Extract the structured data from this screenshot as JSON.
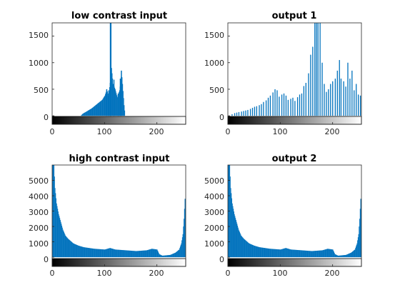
{
  "chart_data": [
    {
      "type": "bar",
      "title": "low contrast input",
      "xlim": [
        0,
        255
      ],
      "ylim": [
        -160,
        1750
      ],
      "xticks": [
        "0",
        "100",
        "200"
      ],
      "yticks": [
        "0",
        "500",
        "1000",
        "1500"
      ],
      "colorbar": "grayscale 0-255",
      "bar_color": "#0072bd",
      "profile": [
        [
          0,
          0
        ],
        [
          54,
          0
        ],
        [
          58,
          40
        ],
        [
          65,
          80
        ],
        [
          75,
          140
        ],
        [
          85,
          220
        ],
        [
          95,
          300
        ],
        [
          100,
          380
        ],
        [
          104,
          500
        ],
        [
          107,
          380
        ],
        [
          110,
          620
        ],
        [
          111,
          1750
        ],
        [
          112,
          1750
        ],
        [
          113,
          900
        ],
        [
          116,
          600
        ],
        [
          120,
          500
        ],
        [
          124,
          350
        ],
        [
          128,
          480
        ],
        [
          130,
          620
        ],
        [
          132,
          850
        ],
        [
          134,
          600
        ],
        [
          137,
          200
        ],
        [
          139,
          0
        ],
        [
          255,
          0
        ]
      ],
      "spikes": [
        [
          104,
          500
        ],
        [
          108,
          480
        ],
        [
          111,
          1750
        ],
        [
          112,
          1750
        ],
        [
          118,
          680
        ],
        [
          126,
          420
        ],
        [
          130,
          700
        ],
        [
          132,
          850
        ]
      ]
    },
    {
      "type": "bar",
      "title": "output 1",
      "xlim": [
        0,
        255
      ],
      "ylim": [
        -160,
        1750
      ],
      "xticks": [
        "0",
        "100",
        "200"
      ],
      "yticks": [
        "0",
        "500",
        "1000",
        "1500"
      ],
      "colorbar": "grayscale 0-255",
      "bar_color": "#0072bd",
      "profile": [
        [
          0,
          0
        ],
        [
          255,
          0
        ]
      ],
      "spikes": [
        [
          8,
          30
        ],
        [
          13,
          50
        ],
        [
          17,
          60
        ],
        [
          21,
          70
        ],
        [
          26,
          80
        ],
        [
          30,
          90
        ],
        [
          34,
          100
        ],
        [
          38,
          110
        ],
        [
          43,
          130
        ],
        [
          47,
          150
        ],
        [
          51,
          170
        ],
        [
          55,
          180
        ],
        [
          60,
          200
        ],
        [
          64,
          220
        ],
        [
          68,
          260
        ],
        [
          73,
          290
        ],
        [
          77,
          340
        ],
        [
          81,
          380
        ],
        [
          86,
          440
        ],
        [
          90,
          500
        ],
        [
          94,
          480
        ],
        [
          98,
          360
        ],
        [
          103,
          400
        ],
        [
          107,
          420
        ],
        [
          111,
          380
        ],
        [
          115,
          300
        ],
        [
          120,
          320
        ],
        [
          124,
          340
        ],
        [
          128,
          280
        ],
        [
          133,
          350
        ],
        [
          137,
          400
        ],
        [
          141,
          420
        ],
        [
          145,
          560
        ],
        [
          149,
          620
        ],
        [
          154,
          800
        ],
        [
          158,
          1150
        ],
        [
          162,
          1300
        ],
        [
          166,
          1750
        ],
        [
          169,
          1750
        ],
        [
          172,
          1750
        ],
        [
          176,
          1750
        ],
        [
          180,
          1000
        ],
        [
          184,
          600
        ],
        [
          188,
          450
        ],
        [
          192,
          500
        ],
        [
          196,
          600
        ],
        [
          200,
          650
        ],
        [
          205,
          700
        ],
        [
          209,
          850
        ],
        [
          213,
          1050
        ],
        [
          216,
          700
        ],
        [
          221,
          650
        ],
        [
          225,
          550
        ],
        [
          229,
          1000
        ],
        [
          233,
          700
        ],
        [
          237,
          850
        ],
        [
          241,
          480
        ],
        [
          245,
          600
        ],
        [
          249,
          400
        ],
        [
          253,
          380
        ]
      ]
    },
    {
      "type": "bar",
      "title": "high contrast input",
      "xlim": [
        0,
        255
      ],
      "ylim": [
        -600,
        6000
      ],
      "xticks": [
        "0",
        "100",
        "200"
      ],
      "yticks": [
        "0",
        "1000",
        "2000",
        "3000",
        "4000",
        "5000"
      ],
      "colorbar": "grayscale 0-255",
      "bar_color": "#0072bd",
      "profile": [
        [
          0,
          6000
        ],
        [
          3,
          6000
        ],
        [
          5,
          4500
        ],
        [
          8,
          3500
        ],
        [
          12,
          2800
        ],
        [
          16,
          2300
        ],
        [
          20,
          1800
        ],
        [
          25,
          1400
        ],
        [
          30,
          1200
        ],
        [
          40,
          900
        ],
        [
          50,
          750
        ],
        [
          60,
          650
        ],
        [
          70,
          600
        ],
        [
          80,
          550
        ],
        [
          100,
          500
        ],
        [
          110,
          600
        ],
        [
          120,
          500
        ],
        [
          140,
          450
        ],
        [
          160,
          400
        ],
        [
          180,
          450
        ],
        [
          190,
          550
        ],
        [
          200,
          500
        ],
        [
          204,
          200
        ],
        [
          210,
          100
        ],
        [
          225,
          150
        ],
        [
          235,
          300
        ],
        [
          242,
          500
        ],
        [
          246,
          900
        ],
        [
          249,
          1500
        ],
        [
          251,
          2500
        ],
        [
          253,
          3800
        ],
        [
          255,
          3800
        ]
      ],
      "spikes": []
    },
    {
      "type": "bar",
      "title": "output 2",
      "xlim": [
        0,
        255
      ],
      "ylim": [
        -600,
        6000
      ],
      "xticks": [
        "0",
        "100",
        "200"
      ],
      "yticks": [
        "0",
        "1000",
        "2000",
        "3000",
        "4000",
        "5000"
      ],
      "colorbar": "grayscale 0-255",
      "bar_color": "#0072bd",
      "profile": [
        [
          0,
          6000
        ],
        [
          3,
          6000
        ],
        [
          5,
          4500
        ],
        [
          8,
          3500
        ],
        [
          12,
          2800
        ],
        [
          16,
          2300
        ],
        [
          20,
          1800
        ],
        [
          25,
          1400
        ],
        [
          30,
          1200
        ],
        [
          40,
          900
        ],
        [
          50,
          750
        ],
        [
          60,
          650
        ],
        [
          70,
          600
        ],
        [
          80,
          550
        ],
        [
          100,
          500
        ],
        [
          110,
          600
        ],
        [
          120,
          500
        ],
        [
          140,
          450
        ],
        [
          160,
          400
        ],
        [
          180,
          450
        ],
        [
          190,
          550
        ],
        [
          200,
          500
        ],
        [
          204,
          200
        ],
        [
          210,
          100
        ],
        [
          225,
          150
        ],
        [
          235,
          300
        ],
        [
          242,
          500
        ],
        [
          246,
          900
        ],
        [
          249,
          1500
        ],
        [
          251,
          2500
        ],
        [
          253,
          3800
        ],
        [
          255,
          3800
        ]
      ],
      "spikes": []
    }
  ]
}
